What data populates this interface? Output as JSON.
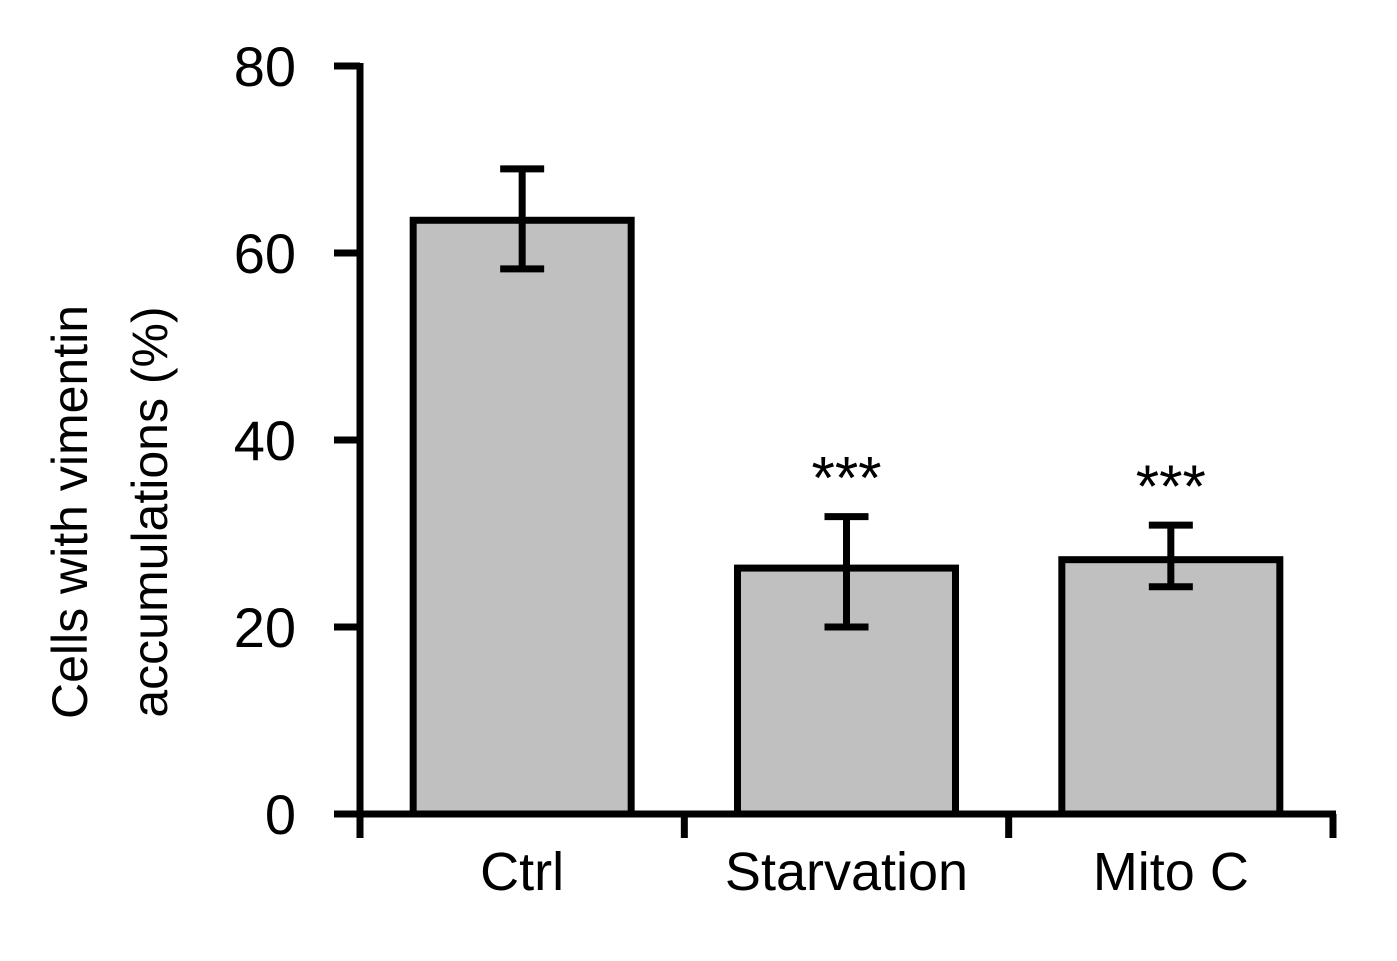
{
  "chart_data": {
    "type": "bar",
    "title": "",
    "xlabel": "",
    "ylabel": [
      "Cells with vimentin",
      "accumulations  (%)"
    ],
    "categories": [
      "Ctrl",
      "Starvation",
      "Mito C"
    ],
    "values": [
      63.5,
      26.3,
      27.2
    ],
    "error_low": [
      58.3,
      20.0,
      24.3
    ],
    "error_high": [
      69.0,
      31.8,
      30.9
    ],
    "significance": [
      "",
      "***",
      "***"
    ],
    "yticks": [
      0,
      20,
      40,
      60,
      80
    ],
    "ylim": [
      0,
      80
    ],
    "grid": false,
    "bar_color": "#c0c0c0",
    "edge_color": "#000000"
  }
}
